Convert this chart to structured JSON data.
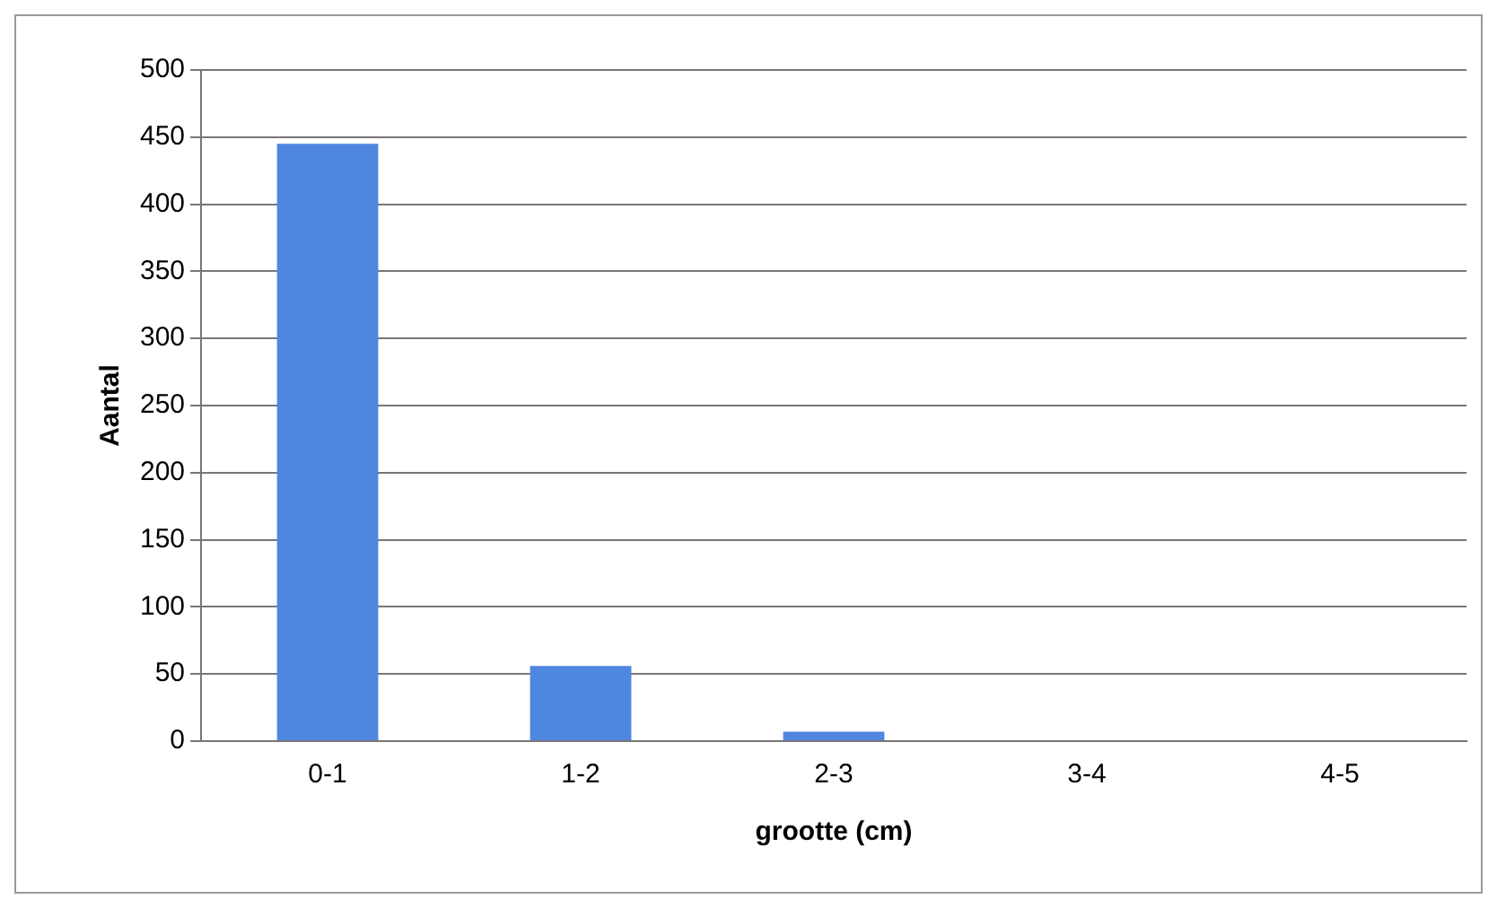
{
  "chart_data": {
    "type": "bar",
    "xlabel": "grootte (cm)",
    "ylabel": "Aantal",
    "categories": [
      "0-1",
      "1-2",
      "2-3",
      "3-4",
      "4-5"
    ],
    "values": [
      445,
      56,
      7,
      null,
      null
    ],
    "color": "#4f86e0",
    "ylim": [
      0,
      500
    ],
    "yticks": [
      0,
      50,
      100,
      150,
      200,
      250,
      300,
      350,
      400,
      450,
      500
    ],
    "grid": "y",
    "legend": false
  }
}
